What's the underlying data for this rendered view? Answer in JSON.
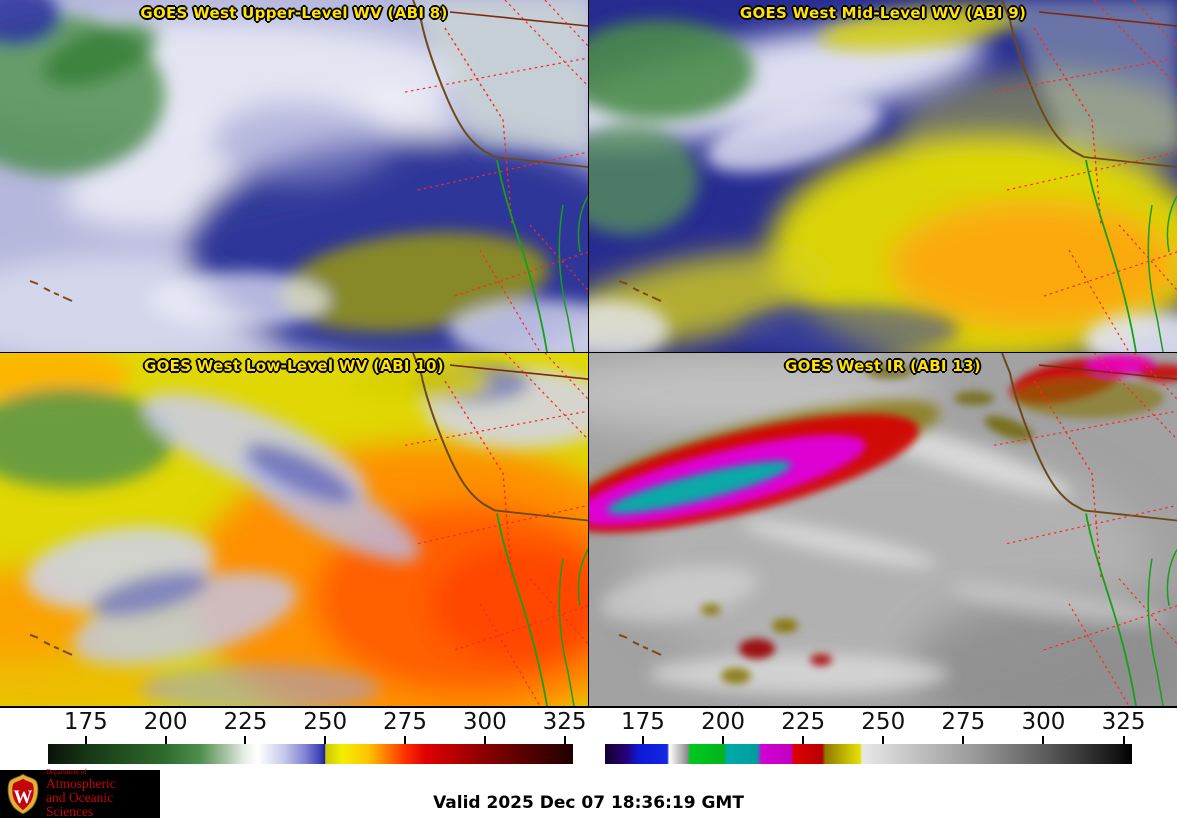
{
  "panels": [
    {
      "id": "upper_wv",
      "title": "GOES West Upper-Level WV (ABI 8)"
    },
    {
      "id": "mid_wv",
      "title": "GOES West Mid-Level WV (ABI 9)"
    },
    {
      "id": "low_wv",
      "title": "GOES West Low-Level WV (ABI 10)"
    },
    {
      "id": "ir",
      "title": "GOES West IR (ABI 13)"
    }
  ],
  "colorbars": [
    {
      "id": "wv_scale",
      "ticks": [
        "175",
        "200",
        "225",
        "250",
        "275",
        "300",
        "325"
      ]
    },
    {
      "id": "ir_scale",
      "ticks": [
        "175",
        "200",
        "225",
        "250",
        "275",
        "300",
        "325"
      ]
    }
  ],
  "footer": {
    "valid_time": "Valid 2025 Dec 07 18:36:19 GMT",
    "logo": {
      "dept": "Department of",
      "name_line1": "Atmospheric",
      "name_line2": "and Oceanic Sciences",
      "crest_letter": "W"
    }
  },
  "colors": {
    "title_text": "#ffe400",
    "logo_red": "#c5050c",
    "map_border_red": "#ff2525",
    "coast_brown": "#6b4a1a",
    "baja_green": "#16a016"
  }
}
